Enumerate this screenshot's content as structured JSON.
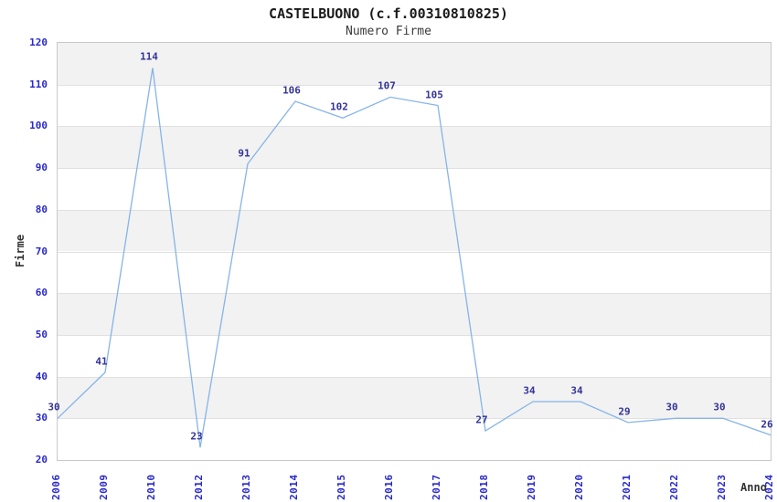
{
  "header": {
    "title": "CASTELBUONO (c.f.00310810825)",
    "subtitle": "Numero Firme"
  },
  "chart_data": {
    "type": "line",
    "title": "CASTELBUONO (c.f.00310810825)",
    "subtitle": "Numero Firme",
    "xlabel": "Anno",
    "ylabel": "Firme",
    "categories": [
      "2006",
      "2009",
      "2010",
      "2012",
      "2013",
      "2014",
      "2015",
      "2016",
      "2017",
      "2018",
      "2019",
      "2020",
      "2021",
      "2022",
      "2023",
      "2024"
    ],
    "values": [
      30,
      41,
      114,
      23,
      91,
      106,
      102,
      107,
      105,
      27,
      34,
      34,
      29,
      30,
      30,
      26
    ],
    "ylim": [
      20,
      120
    ],
    "ytick_step": 10,
    "yticks": [
      20,
      30,
      40,
      50,
      60,
      70,
      80,
      90,
      100,
      110,
      120
    ],
    "grid": "horizontal",
    "legend": "none",
    "data_labels": true,
    "colors": {
      "line": "#85b4e8",
      "tick_label": "#2828cc",
      "data_label": "#333399",
      "band": "#f2f2f2",
      "gridline": "#e0e0e0",
      "plot_border": "#c9c9c9",
      "title": "#1a1a1a",
      "subtitle": "#3a3a3a",
      "axis_title": "#333333"
    }
  }
}
